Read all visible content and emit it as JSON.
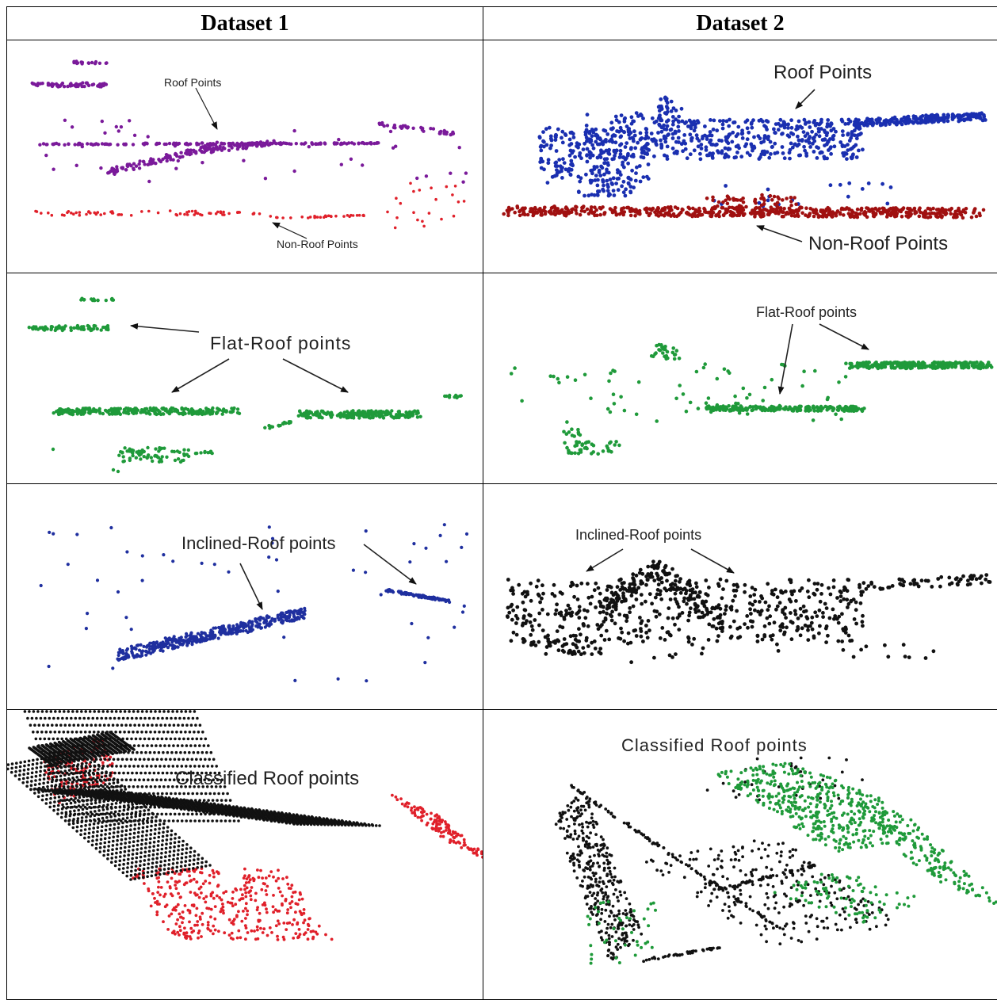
{
  "headers": [
    "Dataset 1",
    "Dataset 2"
  ],
  "labels": {
    "r1c1_roof": "Roof Points",
    "r1c1_nonroof": "Non-Roof Points",
    "r1c2_roof": "Roof Points",
    "r1c2_nonroof": "Non-Roof Points",
    "r2c1_flat": "Flat-Roof points",
    "r2c2_flat": "Flat-Roof points",
    "r3c1_incl": "Inclined-Roof points",
    "r3c2_incl": "Inclined-Roof points",
    "r4c1_class": "Classified Roof points",
    "r4c2_class": "Classified Roof points"
  },
  "colors": {
    "purple": "#7a1a9a",
    "darkred": "#a01010",
    "red": "#e0202a",
    "blue": "#1a2fb0",
    "navy": "#1f2f9f",
    "green": "#1f9a3a",
    "black": "#111111"
  }
}
